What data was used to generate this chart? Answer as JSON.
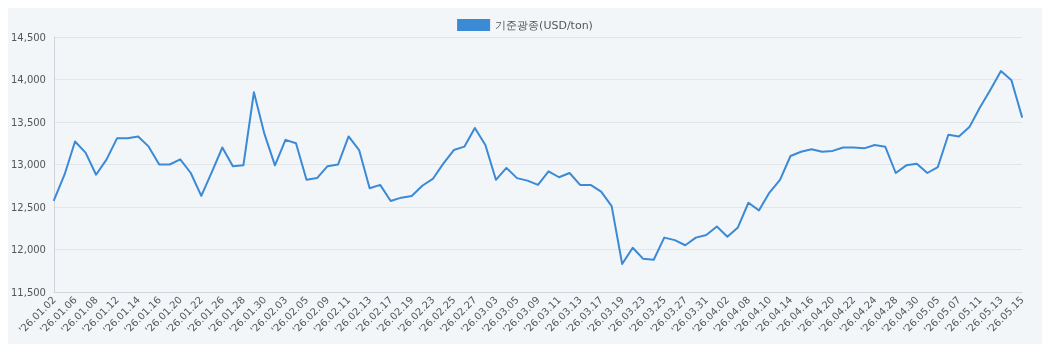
{
  "chart_data": {
    "type": "line",
    "categories": [
      "'26.01.02",
      null,
      "'26.01.06",
      null,
      "'26.01.08",
      null,
      "'26.01.12",
      null,
      "'26.01.14",
      null,
      "'26.01.16",
      null,
      "'26.01.20",
      null,
      "'26.01.22",
      null,
      "'26.01.26",
      null,
      "'26.01.28",
      null,
      "'26.01.30",
      null,
      "'26.02.03",
      null,
      "'26.02.05",
      null,
      "'26.02.09",
      null,
      "'26.02.11",
      null,
      "'26.02.13",
      null,
      "'26.02.17",
      null,
      "'26.02.19",
      null,
      "'26.02.23",
      null,
      "'26.02.25",
      null,
      "'26.02.27",
      null,
      "'26.03.03",
      null,
      "'26.03.05",
      null,
      "'26.03.09",
      null,
      "'26.03.11",
      null,
      "'26.03.13",
      null,
      "'26.03.17",
      null,
      "'26.03.19",
      null,
      "'26.03.23",
      null,
      "'26.03.25",
      null,
      "'26.03.27",
      null,
      "'26.03.31",
      null,
      "'26.04.02",
      null,
      "'26.04.08",
      null,
      "'26.04.10",
      null,
      "'26.04.14",
      null,
      "'26.04.16",
      null,
      "'26.04.20",
      null,
      "'26.04.22",
      null,
      "'26.04.24",
      null,
      "'26.04.28",
      null,
      "'26.04.30",
      null,
      "'26.05.05",
      null,
      "'26.05.07",
      null,
      "'26.05.11",
      null,
      "'26.05.13",
      null,
      "'26.05.15"
    ],
    "series": [
      {
        "name": "기준광종(USD/ton)",
        "color": "#3a8ad6",
        "values": [
          12580,
          12880,
          13270,
          13140,
          12880,
          13060,
          13310,
          13310,
          13330,
          13210,
          13000,
          13000,
          13060,
          12900,
          12630,
          12910,
          13200,
          12980,
          12990,
          13850,
          13360,
          12990,
          13290,
          13250,
          12820,
          12840,
          12980,
          13000,
          13330,
          13170,
          12720,
          12760,
          12570,
          12610,
          12630,
          12750,
          12830,
          13010,
          13170,
          13210,
          13430,
          13230,
          12820,
          12960,
          12840,
          12810,
          12760,
          12920,
          12850,
          12900,
          12760,
          12760,
          12680,
          12510,
          11830,
          12020,
          11890,
          11880,
          12140,
          12110,
          12050,
          12140,
          12170,
          12270,
          12150,
          12260,
          12550,
          12460,
          12670,
          12820,
          13100,
          13150,
          13180,
          13150,
          13160,
          13200,
          13200,
          13190,
          13230,
          13210,
          12900,
          12990,
          13010,
          12900,
          12970,
          13350,
          13330,
          13440,
          13670,
          13880,
          14100,
          13990,
          13560
        ]
      }
    ],
    "ylim": [
      11500,
      14500
    ],
    "yticks": [
      {
        "value": 11500,
        "label": "11,500"
      },
      {
        "value": 12000,
        "label": "12,000"
      },
      {
        "value": 12500,
        "label": "12,500"
      },
      {
        "value": 13000,
        "label": "13,000"
      },
      {
        "value": 13500,
        "label": "13,500"
      },
      {
        "value": 14000,
        "label": "14,000"
      },
      {
        "value": 14500,
        "label": "14,500"
      }
    ],
    "grid": "y",
    "legend": "top",
    "marker": "none",
    "line_style": "solid"
  }
}
